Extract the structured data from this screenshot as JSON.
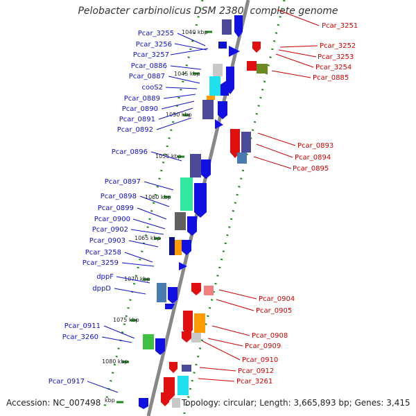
{
  "title": "Pelobacter carbinolicus DSM 2380, complete genome",
  "accession": "Accession: NC_007498",
  "topology": "Topology: circular; Length: 3,665,893 bp; Genes: 3,415",
  "kbp_markers": [
    "1040 kbp",
    "1045 kbp",
    "1050 kbp",
    "1055 kbp",
    "1060 kbp",
    "1065 kbp",
    "1070 kbp",
    "1075 kbp",
    "1080 kbp",
    "kbp"
  ],
  "left_genes": [
    "Pcar_3255",
    "Pcar_3256",
    "Pcar_3257",
    "Pcar_0886",
    "Pcar_0887",
    "cooS2",
    "Pcar_0889",
    "Pcar_0890",
    "Pcar_0891",
    "Pcar_0892",
    "Pcar_0896",
    "Pcar_0897",
    "Pcar_0898",
    "Pcar_0899",
    "Pcar_0900",
    "Pcar_0902",
    "Pcar_0903",
    "Pcar_3258",
    "Pcar_3259",
    "dppF",
    "dppD",
    "Pcar_0911",
    "Pcar_3260",
    "Pcar_0917"
  ],
  "right_genes": [
    "Pcar_3251",
    "Pcar_3252",
    "Pcar_3253",
    "Pcar_3254",
    "Pcar_0885",
    "Pcar_0893",
    "Pcar_0894",
    "Pcar_0895",
    "Pcar_0904",
    "Pcar_0905",
    "Pcar_0908",
    "Pcar_0909",
    "Pcar_0910",
    "Pcar_0912",
    "Pcar_3261"
  ],
  "colors": {
    "forward": "#1010c8",
    "reverse": "#d00000",
    "backbone": "#888888",
    "tick": "#1a8a1a"
  }
}
